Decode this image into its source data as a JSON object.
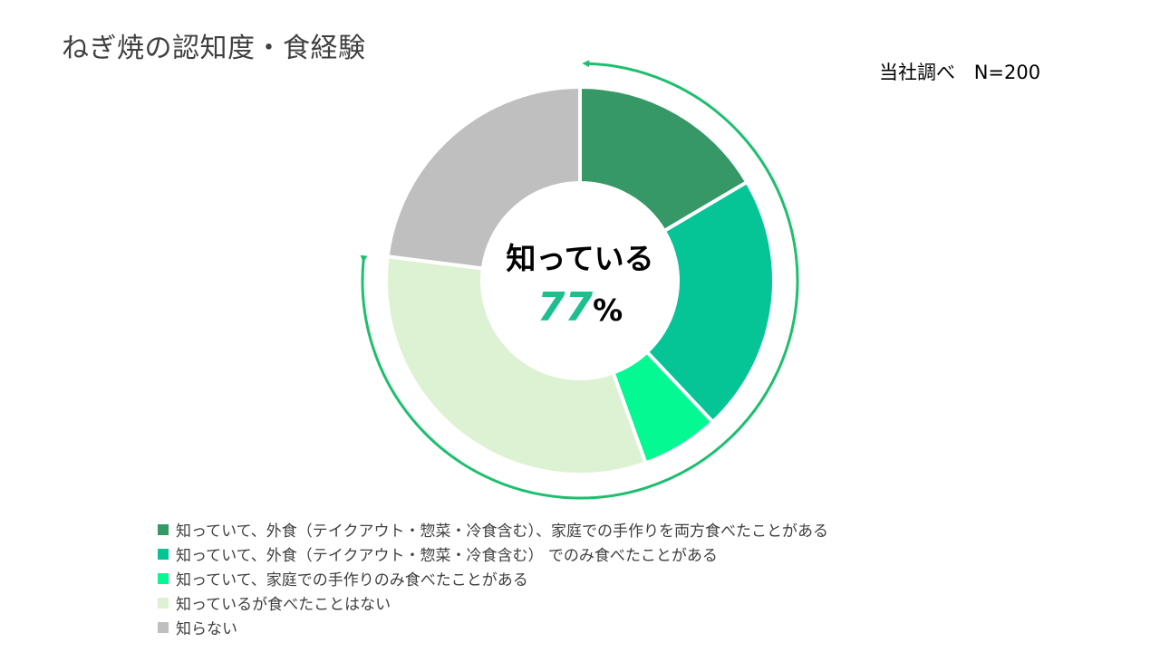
{
  "title": "ねぎ焼の認知度・食経験",
  "source": {
    "label": "当社調べ",
    "sample": "N=200"
  },
  "center": {
    "label": "知っている",
    "value": "77",
    "unit": "%"
  },
  "chart_data": {
    "type": "pie",
    "donut": true,
    "start_angle_deg": 0,
    "direction": "clockwise",
    "categories": [
      "知っていて、外食（テイクアウト・惣菜・冷食含む）、家庭での手作りを両方食べたことがある",
      "知っていて、外食（テイクアウト・惣菜・冷食含む） でのみ食べたことがある",
      "知っていて、家庭での手作りのみ食べたことがある",
      "知っているが食べたことはない",
      "知らない"
    ],
    "values": [
      16.5,
      21.5,
      6.5,
      32.5,
      23.0
    ],
    "colors": [
      "#359866",
      "#05C596",
      "#05F993",
      "#DCF2D3",
      "#BFBFBF"
    ],
    "legend": {
      "position": "bottom-left",
      "items": [
        "知っていて、外食（テイクアウト・惣菜・冷食含む）、家庭での手作りを両方食べたことがある",
        "知っていて、外食（テイクアウト・惣菜・冷食含む） でのみ食べたことがある",
        "知っていて、家庭での手作りのみ食べたことがある",
        "知っているが食べたことはない",
        "知らない"
      ]
    },
    "annotation": {
      "type": "arc-arrow",
      "covers_series": [
        0,
        1,
        2,
        3
      ],
      "color": "#1DBF6E"
    }
  },
  "colors": {
    "accent": "#1DBF6E",
    "center_value": "#1DBF8F",
    "text": "#404040"
  }
}
